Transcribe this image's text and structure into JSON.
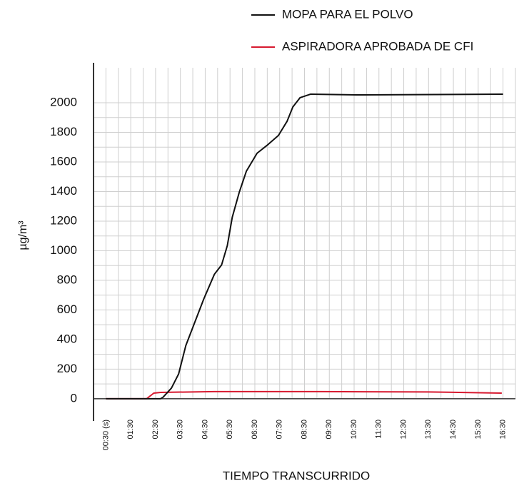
{
  "chart_data": {
    "type": "line",
    "ylabel": "µg/m³",
    "xlabel": "TIEMPO TRANSCURRIDO",
    "xlim": [
      0,
      17
    ],
    "ylim": [
      -150,
      2270
    ],
    "xticks": [
      {
        "value": 0.5,
        "label": "00:30 (s)"
      },
      {
        "value": 1.5,
        "label": "01:30"
      },
      {
        "value": 2.5,
        "label": "02:30"
      },
      {
        "value": 3.5,
        "label": "03:30"
      },
      {
        "value": 4.5,
        "label": "04:30"
      },
      {
        "value": 5.5,
        "label": "05:30"
      },
      {
        "value": 6.5,
        "label": "06:30"
      },
      {
        "value": 7.5,
        "label": "07:30"
      },
      {
        "value": 8.5,
        "label": "08:30"
      },
      {
        "value": 9.5,
        "label": "09:30"
      },
      {
        "value": 10.5,
        "label": "10:30"
      },
      {
        "value": 11.5,
        "label": "11:30"
      },
      {
        "value": 12.5,
        "label": "12:30"
      },
      {
        "value": 13.5,
        "label": "13:30"
      },
      {
        "value": 14.5,
        "label": "14:30"
      },
      {
        "value": 15.5,
        "label": "15:30"
      },
      {
        "value": 16.5,
        "label": "16:30"
      }
    ],
    "yticks": [
      0,
      200,
      400,
      600,
      800,
      1000,
      1200,
      1400,
      1600,
      1800,
      2000
    ],
    "grid": true,
    "legend": "top-right",
    "series": [
      {
        "name": "MOPA PARA EL POLVO",
        "color": "#111111",
        "x": [
          0.5,
          2.7,
          2.8,
          3.14,
          3.43,
          3.72,
          4.44,
          4.87,
          5.16,
          5.39,
          5.59,
          5.87,
          6.16,
          6.59,
          7.02,
          7.45,
          7.8,
          8.03,
          8.32,
          8.75,
          10.6,
          16.5
        ],
        "values": [
          0,
          0,
          10,
          72,
          168,
          360,
          673,
          841,
          904,
          1034,
          1226,
          1394,
          1538,
          1659,
          1716,
          1779,
          1875,
          1971,
          2034,
          2058,
          2053,
          2058
        ]
      },
      {
        "name": "ASPIRADORA APROBADA DE CFI",
        "color": "#d7192f",
        "x": [
          0.5,
          2.14,
          2.43,
          2.71,
          4.87,
          9.18,
          13.5,
          16.45
        ],
        "values": [
          0,
          0,
          38,
          43,
          48,
          48,
          46,
          38
        ]
      }
    ]
  }
}
